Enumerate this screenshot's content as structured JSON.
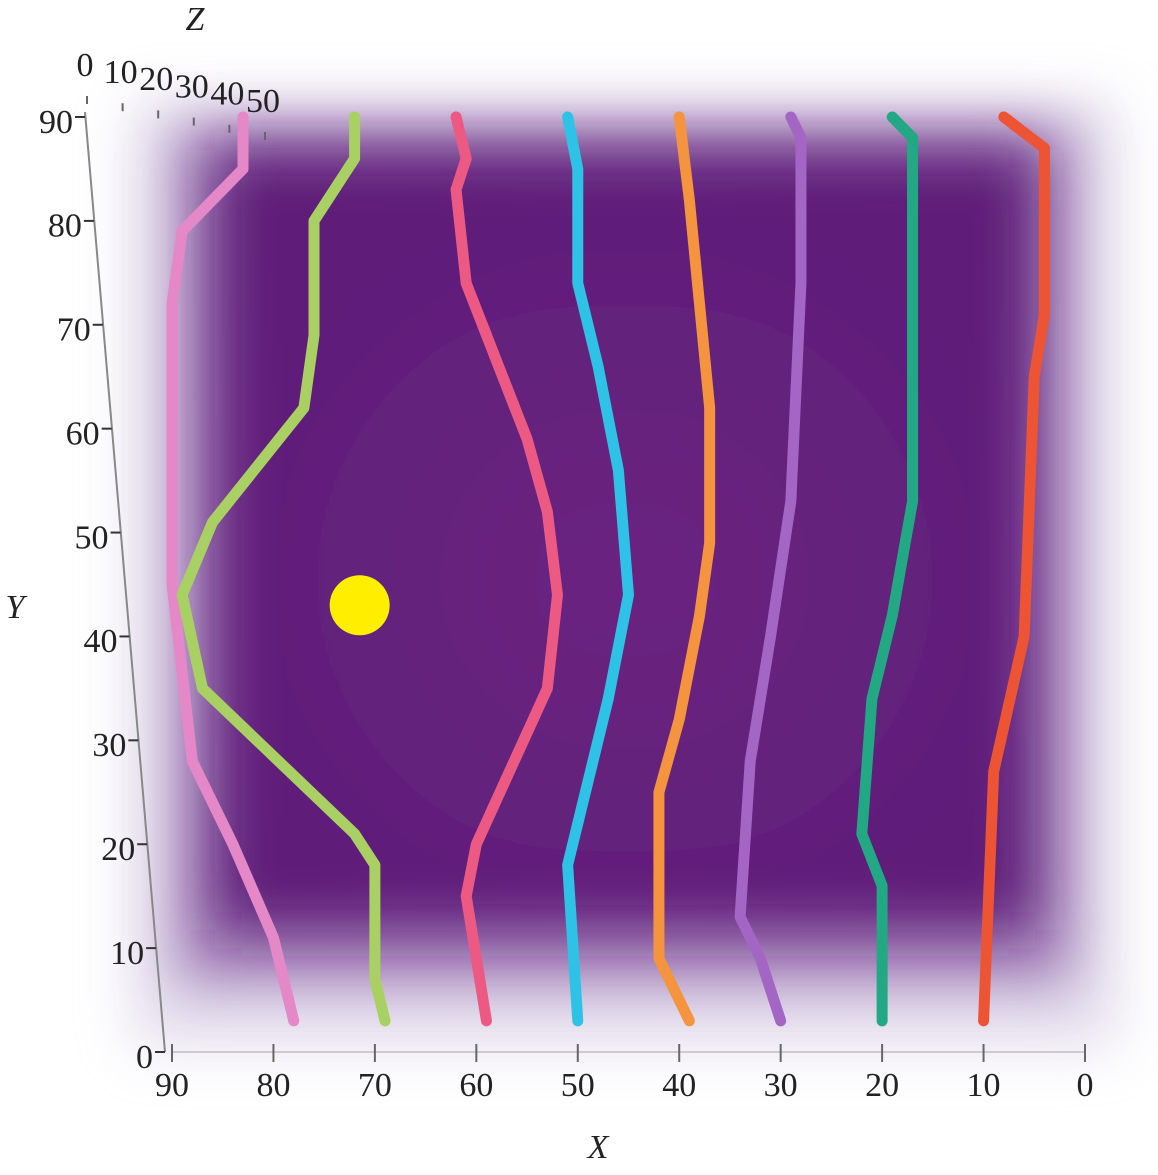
{
  "chart_data": {
    "type": "line",
    "x_label": "X",
    "y_label": "Y",
    "z_label": "Z",
    "xlim": [
      0,
      90
    ],
    "ylim": [
      0,
      90
    ],
    "zlim": [
      0,
      50
    ],
    "xticks": [
      90,
      80,
      70,
      60,
      50,
      40,
      30,
      20,
      10,
      0
    ],
    "yticks": [
      0,
      10,
      20,
      30,
      40,
      50,
      60,
      70,
      80,
      90
    ],
    "zticks": [
      0,
      10,
      20,
      30,
      40,
      50
    ],
    "series": [
      {
        "color": "#e488c8",
        "x": [
          83,
          83,
          89,
          90,
          90,
          90,
          88,
          84,
          80,
          78
        ],
        "values": [
          90,
          85,
          79,
          72,
          62,
          45,
          28,
          20,
          11,
          3
        ]
      },
      {
        "color": "#a8d062",
        "x": [
          72,
          72,
          76,
          76,
          77,
          86,
          89,
          87,
          72,
          70,
          70,
          69
        ],
        "values": [
          90,
          86,
          80,
          69,
          62,
          51,
          44,
          35,
          21,
          18,
          7,
          3
        ]
      },
      {
        "color": "#ec5a84",
        "x": [
          62,
          61,
          62,
          61,
          59,
          55,
          53,
          52,
          53,
          60,
          61,
          59
        ],
        "values": [
          90,
          86,
          83,
          74,
          69,
          59,
          52,
          44,
          35,
          20,
          15,
          3
        ]
      },
      {
        "color": "#2ec2e6",
        "x": [
          51,
          50,
          50,
          48,
          46,
          45,
          47,
          50,
          51,
          50
        ],
        "values": [
          90,
          85,
          74,
          66,
          56,
          44,
          34,
          22,
          18,
          3
        ]
      },
      {
        "color": "#f4943e",
        "x": [
          40,
          39,
          38,
          37,
          37,
          38,
          40,
          42,
          42,
          39
        ],
        "values": [
          90,
          82,
          72,
          62,
          49,
          42,
          32,
          25,
          9,
          3
        ]
      },
      {
        "color": "#a466c4",
        "x": [
          29,
          28,
          28,
          29,
          31,
          33,
          34,
          32,
          30
        ],
        "values": [
          90,
          88,
          74,
          53,
          40,
          28,
          13,
          9,
          3
        ]
      },
      {
        "color": "#22a882",
        "x": [
          19,
          17,
          17,
          17,
          19,
          21,
          22,
          20,
          20
        ],
        "values": [
          90,
          88,
          70,
          53,
          42,
          34,
          21,
          16,
          3
        ]
      },
      {
        "color": "#ec5434",
        "x": [
          8,
          4,
          4,
          4,
          5,
          6,
          9,
          10
        ],
        "values": [
          90,
          87,
          79,
          71,
          65,
          40,
          27,
          3
        ]
      }
    ],
    "point": {
      "x": 71.5,
      "y": 43,
      "color": "#ffee00"
    }
  }
}
